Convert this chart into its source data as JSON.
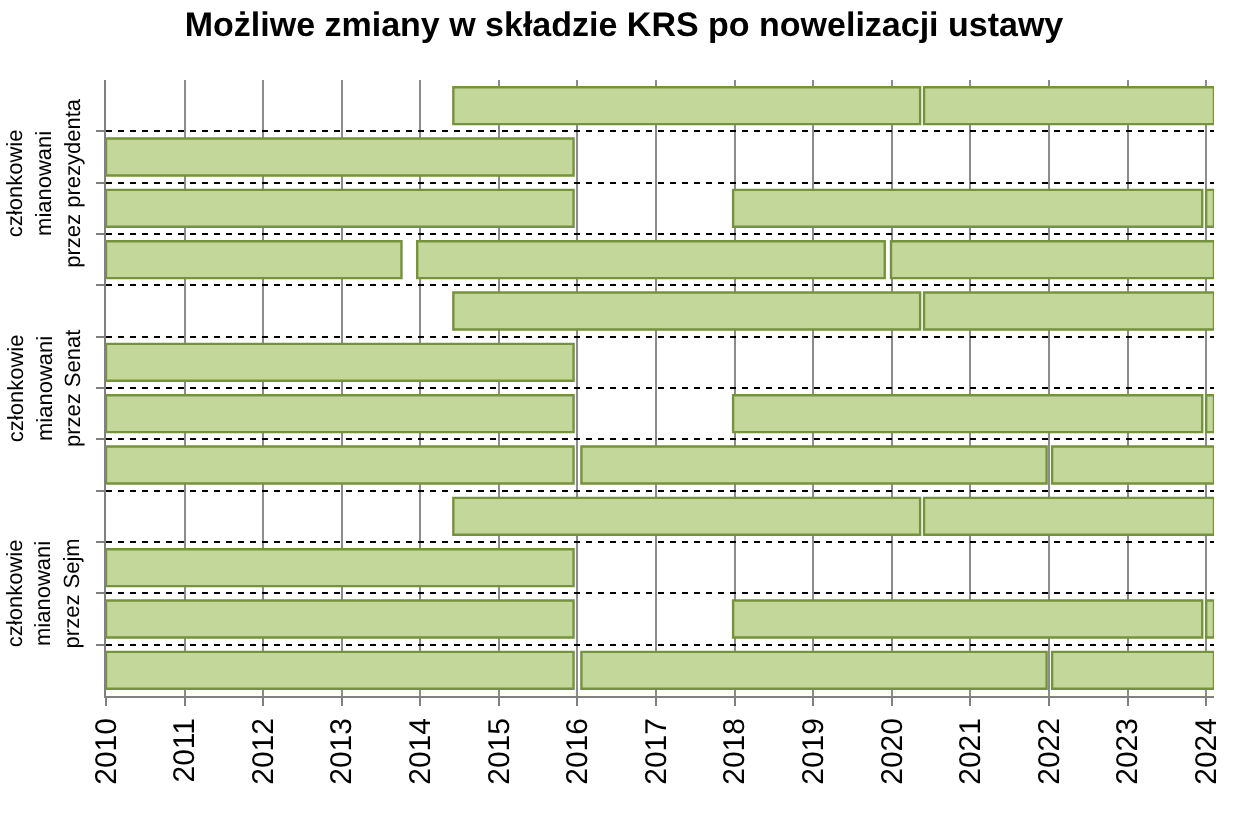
{
  "chart_data": {
    "type": "bar",
    "orientation": "horizontal",
    "title": "Możliwe zmiany w składzie KRS po nowelizacji ustawy",
    "annotations": [
      "członkowie\nmianowani\nprzez prezydenta",
      "członkowie\nmianowani\nprzez Senat",
      "członkowie\nmianowani\nprzez Sejm"
    ],
    "categories": [
      null,
      null,
      null,
      null,
      null,
      null,
      null,
      null,
      null,
      null,
      null,
      null
    ],
    "series": [
      {
        "color": "#c4d79b",
        "base": [
          2014.42,
          2010,
          2010,
          2010,
          2014.42,
          2010,
          2010,
          2010,
          2014.42,
          2010,
          2010,
          2010
        ],
        "values": [
          5.94,
          5.95,
          5.95,
          3.76,
          5.94,
          5.95,
          5.95,
          5.95,
          5.94,
          5.95,
          5.95,
          5.95
        ]
      },
      {
        "color": "#c4d79b",
        "base": [
          2020.41,
          null,
          2017.98,
          2013.96,
          2020.41,
          null,
          2017.98,
          2016.05,
          2020.41,
          null,
          2017.98,
          2016.05
        ],
        "values": [
          3.69,
          null,
          5.97,
          5.95,
          3.69,
          null,
          5.97,
          5.92,
          3.69,
          null,
          5.97,
          5.92
        ]
      },
      {
        "color": "#c4d79b",
        "base": [
          null,
          null,
          2024.0,
          2019.99,
          null,
          null,
          2024.0,
          2022.04,
          null,
          null,
          2024.0,
          2022.04
        ],
        "values": [
          null,
          null,
          0.1,
          4.11,
          null,
          null,
          0.1,
          2.06,
          null,
          null,
          0.1,
          2.06
        ]
      }
    ],
    "xlim": [
      2010,
      2024.1
    ],
    "xticks": [
      2010,
      2011,
      2012,
      2013,
      2014,
      2015,
      2016,
      2017,
      2018,
      2019,
      2020,
      2021,
      2022,
      2023,
      2024
    ],
    "grid": true
  }
}
